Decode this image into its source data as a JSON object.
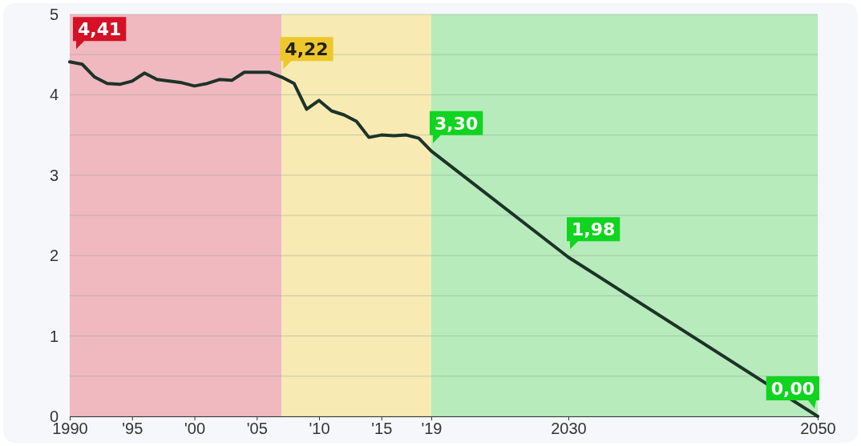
{
  "chart_data": {
    "type": "line",
    "x": [
      1990,
      1991,
      1992,
      1993,
      1994,
      1995,
      1996,
      1997,
      1998,
      1999,
      2000,
      2001,
      2002,
      2003,
      2004,
      2005,
      2006,
      2007,
      2008,
      2009,
      2010,
      2011,
      2012,
      2013,
      2014,
      2015,
      2016,
      2017,
      2018,
      2019,
      2030,
      2050
    ],
    "series": [
      {
        "color": "#1c3328",
        "values": [
          4.41,
          4.38,
          4.22,
          4.14,
          4.13,
          4.17,
          4.27,
          4.19,
          4.17,
          4.15,
          4.11,
          4.14,
          4.19,
          4.18,
          4.28,
          4.28,
          4.28,
          4.22,
          4.14,
          3.82,
          3.93,
          3.8,
          3.75,
          3.67,
          3.47,
          3.5,
          3.49,
          3.5,
          3.46,
          3.3,
          1.98,
          0.0
        ]
      }
    ],
    "xlim": [
      1990,
      2050
    ],
    "xticks": [
      1990,
      {
        "value": 1995,
        "label": "'95"
      },
      {
        "value": 2000,
        "label": "'00"
      },
      {
        "value": 2005,
        "label": "'05"
      },
      {
        "value": 2010,
        "label": "'10"
      },
      {
        "value": 2015,
        "label": "'15"
      },
      {
        "value": 2019,
        "label": "'19"
      },
      2030,
      2050
    ],
    "ylim": [
      0,
      5
    ],
    "yticks": [
      0,
      {
        "value": 0.5,
        "label": null
      },
      1,
      {
        "value": 1.5,
        "label": null
      },
      2,
      {
        "value": 2.5,
        "label": null
      },
      3,
      {
        "value": 3.5,
        "label": null
      },
      4,
      {
        "value": 4.5,
        "label": null
      },
      5
    ],
    "grid": "y",
    "marker": "none",
    "line_style": "solid",
    "bands": [
      {
        "axis": "x",
        "from": 1990,
        "to": 2007,
        "color": "#f0b9bf"
      },
      {
        "axis": "x",
        "from": 2007,
        "to": 2019,
        "color": "#f7eab3"
      },
      {
        "axis": "x",
        "from": 2019,
        "to": 2050,
        "color": "#b7ebbb"
      }
    ],
    "annotations": [
      {
        "text": "4,41",
        "x": 1990,
        "y": 4.41
      },
      {
        "text": "4,22",
        "x": 2007,
        "y": 4.22
      },
      {
        "text": "3,30",
        "x": 2019,
        "y": 3.3
      },
      {
        "text": "1,98",
        "x": 2030,
        "y": 1.98
      },
      {
        "text": "0,00",
        "x": 2050,
        "y": 0.0
      }
    ]
  }
}
